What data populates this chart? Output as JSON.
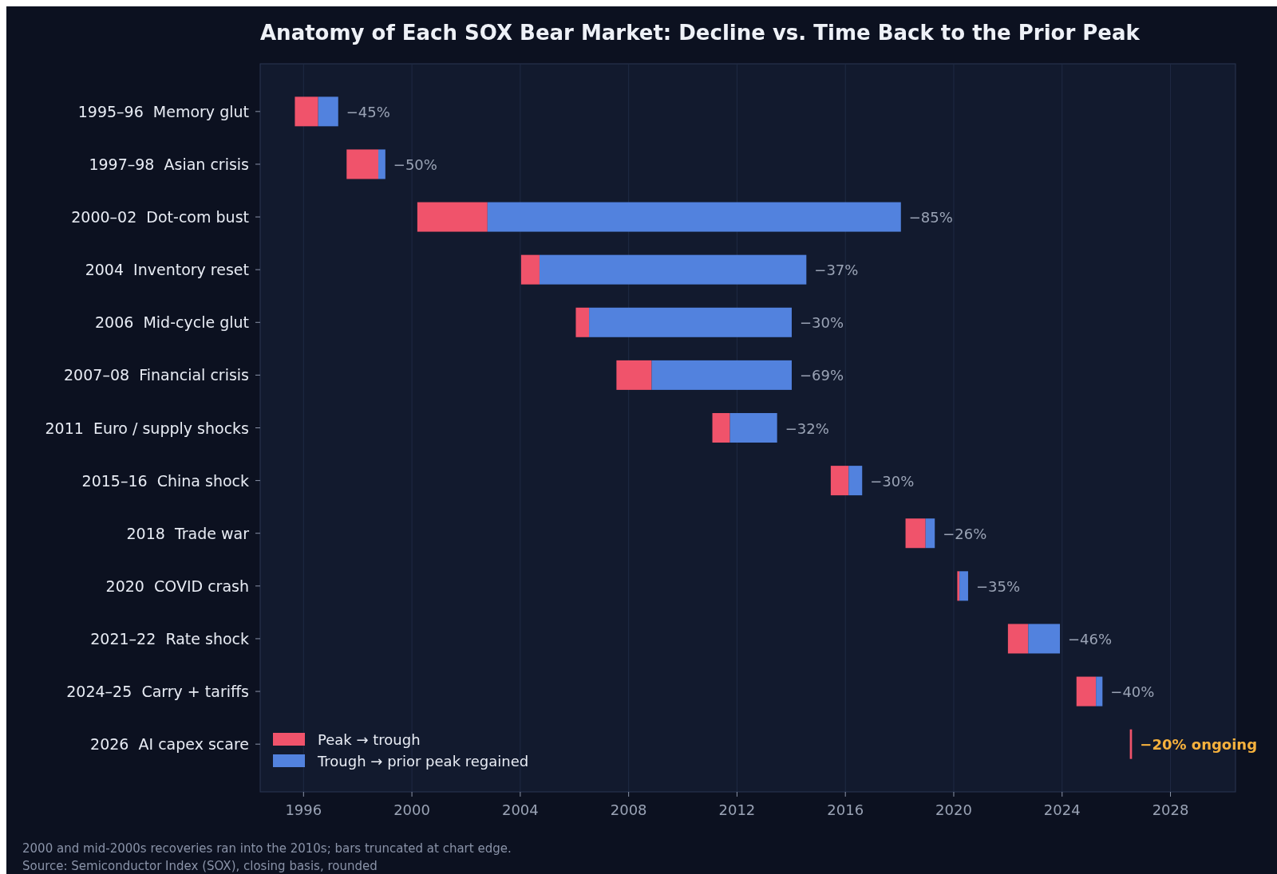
{
  "chart_data": {
    "type": "bar",
    "orientation": "horizontal",
    "title": "Anatomy of Each SOX Bear Market: Decline vs. Time Back to the Prior Peak",
    "categories": [
      "1995–96  Memory glut",
      "1997–98  Asian crisis",
      "2000–02  Dot-com bust",
      "2004  Inventory reset",
      "2006  Mid-cycle glut",
      "2007–08  Financial crisis",
      "2011  Euro / supply shocks",
      "2015–16  China shock",
      "2018  Trade war",
      "2020  COVID crash",
      "2021–22  Rate shock",
      "2024–25  Carry + tariffs",
      "2026  AI capex scare"
    ],
    "series": [
      {
        "name": "Peak → trough",
        "color": "#f0536b",
        "base": [
          1995.68,
          1997.59,
          2000.2,
          2004.03,
          2006.05,
          2007.55,
          2011.09,
          2015.46,
          2018.22,
          2020.13,
          2022.0,
          2024.53,
          2026.5
        ],
        "values": [
          0.86,
          1.17,
          2.59,
          0.68,
          0.49,
          1.3,
          0.65,
          0.66,
          0.74,
          0.08,
          0.75,
          0.72,
          0.08
        ]
      },
      {
        "name": "Trough → prior peak regained",
        "color": "#5282de",
        "base": [
          1996.54,
          1998.76,
          2002.79,
          2004.71,
          2006.54,
          2008.85,
          2011.74,
          2016.12,
          2018.96,
          2020.21,
          2022.75,
          2025.25,
          null
        ],
        "values": [
          0.74,
          0.26,
          15.26,
          9.85,
          7.48,
          5.17,
          1.74,
          0.5,
          0.34,
          0.32,
          1.17,
          0.24,
          null
        ]
      }
    ],
    "value_labels": [
      "−45%",
      "−50%",
      "−85%",
      "−37%",
      "−30%",
      "−69%",
      "−32%",
      "−30%",
      "−26%",
      "−35%",
      "−46%",
      "−40%",
      null
    ],
    "xlim": [
      1994.4,
      2030.4
    ],
    "xticks": [
      1996,
      2000,
      2004,
      2008,
      2012,
      2016,
      2020,
      2024,
      2028
    ],
    "grid": "x",
    "legend": "bottom left",
    "annotations": [
      "−20% ongoing",
      "2000 and mid-2000s recoveries ran into the 2010s; bars truncated at chart edge.",
      "Source: Semiconductor Index (SOX), closing basis, rounded"
    ]
  }
}
